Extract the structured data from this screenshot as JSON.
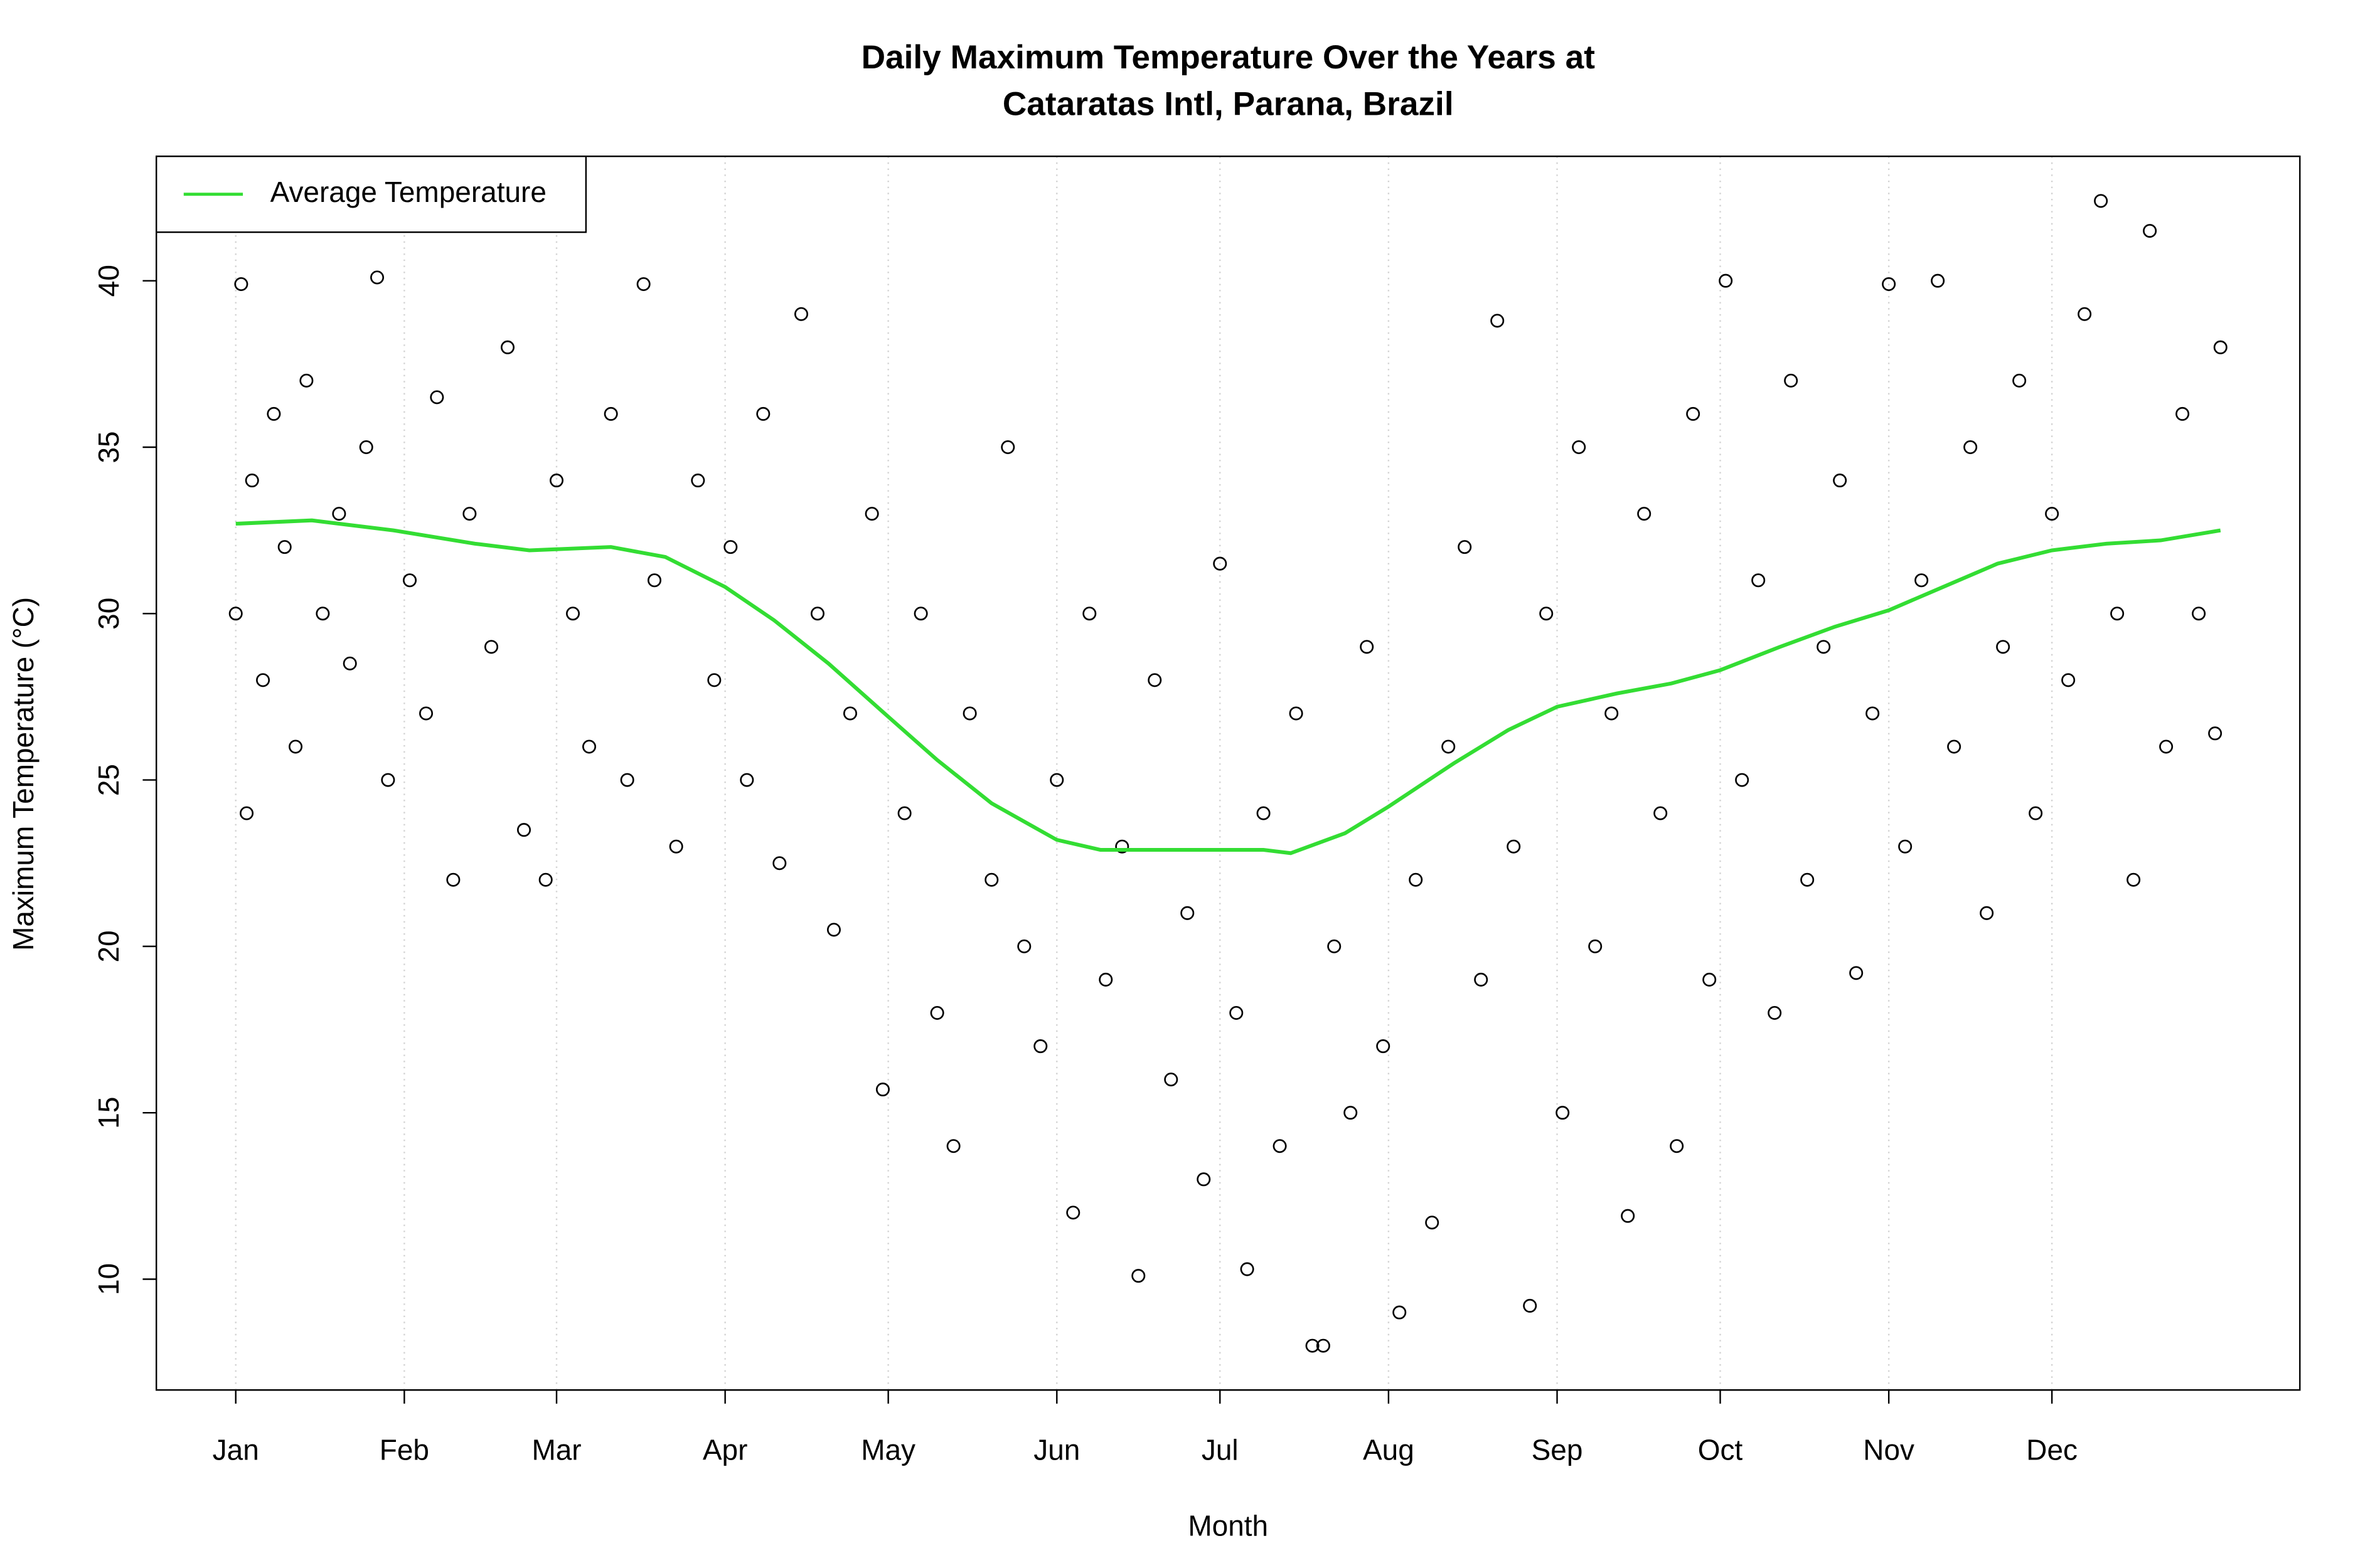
{
  "chart_data": {
    "type": "scatter",
    "title": "Daily Maximum Temperature Over the Years at\nCataratas Intl, Parana, Brazil",
    "x_label": "Month",
    "y_label": "Maximum Temperature (°C)",
    "xlim": [
      -13.6,
      380.6
    ],
    "ylim": [
      6.67,
      43.74
    ],
    "xticks": [
      {
        "value": 1,
        "label": "Jan"
      },
      {
        "value": 32,
        "label": "Feb"
      },
      {
        "value": 60,
        "label": "Mar"
      },
      {
        "value": 91,
        "label": "Apr"
      },
      {
        "value": 121,
        "label": "May"
      },
      {
        "value": 152,
        "label": "Jun"
      },
      {
        "value": 182,
        "label": "Jul"
      },
      {
        "value": 213,
        "label": "Aug"
      },
      {
        "value": 244,
        "label": "Sep"
      },
      {
        "value": 274,
        "label": "Oct"
      },
      {
        "value": 305,
        "label": "Nov"
      },
      {
        "value": 335,
        "label": "Dec"
      }
    ],
    "yticks": [
      10,
      15,
      20,
      25,
      30,
      35,
      40
    ],
    "grid": true,
    "legend": "top-left",
    "series": [
      {
        "type": "scatter",
        "color": "#000000",
        "x": [
          1,
          2,
          3,
          4,
          6,
          8,
          10,
          12,
          14,
          17,
          20,
          22,
          25,
          27,
          29,
          33,
          36,
          38,
          41,
          44,
          48,
          51,
          54,
          58,
          60,
          63,
          66,
          70,
          73,
          76,
          78,
          82,
          86,
          89,
          92,
          95,
          98,
          101,
          105,
          108,
          111,
          114,
          118,
          120,
          124,
          127,
          130,
          133,
          136,
          140,
          143,
          146,
          149,
          152,
          155,
          158,
          161,
          164,
          167,
          170,
          173,
          176,
          179,
          182,
          185,
          187,
          190,
          193,
          196,
          199,
          201,
          203,
          206,
          209,
          212,
          215,
          218,
          221,
          224,
          227,
          230,
          233,
          236,
          239,
          242,
          245,
          248,
          251,
          254,
          257,
          260,
          263,
          266,
          269,
          272,
          275,
          278,
          281,
          284,
          287,
          290,
          293,
          296,
          299,
          302,
          305,
          308,
          311,
          314,
          317,
          320,
          323,
          326,
          329,
          332,
          335,
          338,
          341,
          344,
          347,
          350,
          353,
          356,
          359,
          362,
          365,
          366
        ],
        "y": [
          30,
          39.9,
          24,
          34,
          28,
          36,
          32,
          26,
          37,
          30,
          33,
          28.5,
          35,
          40.1,
          25,
          31,
          27,
          36.5,
          22,
          33,
          29,
          38,
          23.5,
          22,
          34,
          30,
          26,
          36,
          25,
          39.9,
          31,
          23,
          34,
          28,
          32,
          25,
          36,
          22.5,
          39,
          30,
          20.5,
          27,
          33,
          15.7,
          24,
          30,
          18,
          14,
          27,
          22,
          35,
          20,
          17,
          25,
          12,
          30,
          19,
          23,
          10.1,
          28,
          16,
          21,
          13,
          31.5,
          18,
          10.3,
          24,
          14,
          27,
          8,
          8,
          20,
          15,
          29,
          17,
          9,
          22,
          11.7,
          26,
          32,
          19,
          38.8,
          23,
          9.2,
          30,
          15,
          35,
          20,
          27,
          11.9,
          33,
          24,
          14,
          36,
          19,
          40,
          25,
          31,
          18,
          37,
          22,
          29,
          34,
          19.2,
          27,
          39.9,
          23,
          31,
          40,
          26,
          35,
          21,
          29,
          37,
          24,
          33,
          28,
          39,
          42.4,
          30,
          22,
          41.5,
          26,
          36,
          30,
          26.4,
          38
        ]
      },
      {
        "type": "line",
        "name": "Average Temperature",
        "color": "#33dd33",
        "x": [
          1,
          15,
          30,
          45,
          55,
          70,
          80,
          91,
          100,
          110,
          121,
          130,
          140,
          152,
          160,
          170,
          182,
          190,
          195,
          205,
          213,
          225,
          235,
          244,
          255,
          265,
          274,
          285,
          295,
          305,
          315,
          325,
          335,
          345,
          355,
          366
        ],
        "y": [
          32.7,
          32.8,
          32.5,
          32.1,
          31.9,
          32.0,
          31.7,
          30.8,
          29.8,
          28.5,
          26.9,
          25.6,
          24.3,
          23.2,
          22.9,
          22.9,
          22.9,
          22.9,
          22.8,
          23.4,
          24.2,
          25.5,
          26.5,
          27.2,
          27.6,
          27.9,
          28.3,
          29.0,
          29.6,
          30.1,
          30.8,
          31.5,
          31.9,
          32.1,
          32.2,
          32.5
        ]
      }
    ]
  }
}
